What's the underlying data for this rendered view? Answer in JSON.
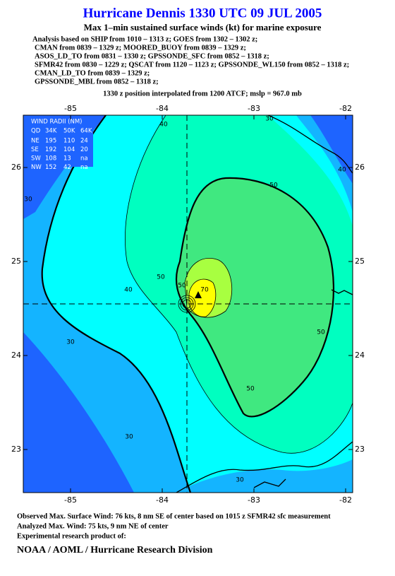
{
  "header": {
    "title": "Hurricane Dennis 1330 UTC 09 JUL 2005",
    "subtitle": "Max 1–min sustained surface winds (kt) for marine exposure",
    "analysis_lines": [
      "Analysis based on  SHIP from 1010 – 1313 z;  GOES from 1302 – 1302 z;",
      "CMAN from 0839 – 1329 z;  MOORED_BUOY from 0839 – 1329 z;",
      "ASOS_LD_TO from 0831 – 1330 z;  GPSSONDE_SFC from 0852 – 1318 z;",
      "SFMR42 from 0830 – 1229 z;  QSCAT from 1120 – 1123 z;  GPSSONDE_WL150 from 0852 – 1318 z;",
      "CMAN_LD_TO from 0839 – 1329 z;",
      "GPSSONDE_MBL from 0852 – 1318 z;"
    ],
    "position_note": "1330 z position interpolated from 1200 ATCF; mslp = 967.0 mb"
  },
  "map": {
    "lon_ticks": [
      -85,
      -84,
      -83,
      -82
    ],
    "lat_ticks": [
      26,
      25,
      24,
      23
    ],
    "contour_labels": [
      40,
      40,
      50,
      50,
      50,
      50,
      50,
      40,
      30,
      30,
      30,
      30,
      70,
      30
    ]
  },
  "wind_radii": {
    "title": "WIND RADII (NM)",
    "header": [
      "QD",
      "34K",
      "50K",
      "64K"
    ],
    "rows": [
      [
        "NE",
        195,
        110,
        24
      ],
      [
        "SE",
        192,
        104,
        20
      ],
      [
        "SW",
        108,
        13,
        "na"
      ],
      [
        "NW",
        152,
        42,
        "na"
      ]
    ]
  },
  "footer": {
    "lines": [
      "Observed Max. Surface Wind: 76 kts, 8 nm SE of center based on 1015 z SFMR42 sfc measurement",
      "Analyzed Max. Wind: 75 kts, 9 nm NE of center",
      "Experimental research product of:"
    ],
    "credit": "NOAA / AOML / Hurricane Research Division"
  }
}
